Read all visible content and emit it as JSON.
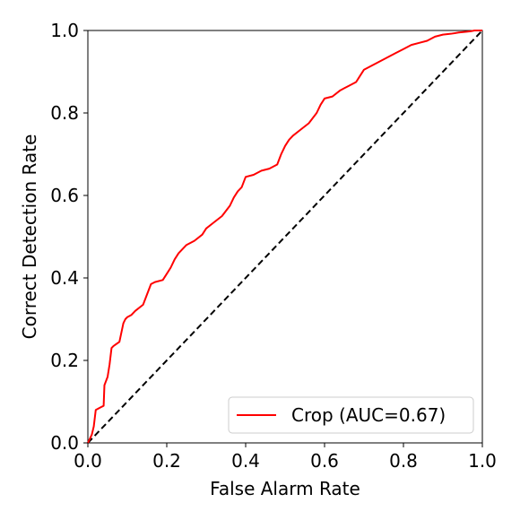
{
  "chart_data": {
    "type": "line",
    "title": "",
    "xlabel": "False Alarm Rate",
    "ylabel": "Correct Detection Rate",
    "xlim": [
      0.0,
      1.0
    ],
    "ylim": [
      0.0,
      1.0
    ],
    "xticks": [
      "0.0",
      "0.2",
      "0.4",
      "0.6",
      "0.8",
      "1.0"
    ],
    "yticks": [
      "0.0",
      "0.2",
      "0.4",
      "0.6",
      "0.8",
      "1.0"
    ],
    "grid": false,
    "legend_position": "lower-right",
    "series": [
      {
        "name": "Crop (AUC=0.67)",
        "color": "#ff0000",
        "style": "solid",
        "x": [
          0.0,
          0.01,
          0.015,
          0.02,
          0.03,
          0.04,
          0.042,
          0.05,
          0.055,
          0.06,
          0.065,
          0.08,
          0.09,
          0.095,
          0.1,
          0.11,
          0.12,
          0.14,
          0.15,
          0.16,
          0.17,
          0.19,
          0.2,
          0.21,
          0.22,
          0.23,
          0.25,
          0.27,
          0.29,
          0.3,
          0.32,
          0.34,
          0.36,
          0.37,
          0.38,
          0.39,
          0.4,
          0.42,
          0.44,
          0.46,
          0.48,
          0.49,
          0.5,
          0.51,
          0.52,
          0.54,
          0.56,
          0.58,
          0.59,
          0.6,
          0.62,
          0.64,
          0.65,
          0.66,
          0.68,
          0.69,
          0.7,
          0.72,
          0.74,
          0.76,
          0.78,
          0.8,
          0.82,
          0.84,
          0.86,
          0.88,
          0.9,
          0.92,
          0.94,
          0.96,
          0.97,
          0.98,
          1.0
        ],
        "y": [
          0.0,
          0.02,
          0.04,
          0.08,
          0.085,
          0.09,
          0.14,
          0.16,
          0.19,
          0.23,
          0.235,
          0.245,
          0.29,
          0.3,
          0.305,
          0.31,
          0.32,
          0.335,
          0.36,
          0.385,
          0.39,
          0.395,
          0.41,
          0.425,
          0.445,
          0.46,
          0.48,
          0.49,
          0.505,
          0.52,
          0.535,
          0.55,
          0.575,
          0.595,
          0.61,
          0.62,
          0.645,
          0.65,
          0.66,
          0.665,
          0.675,
          0.7,
          0.72,
          0.735,
          0.745,
          0.76,
          0.775,
          0.8,
          0.82,
          0.835,
          0.84,
          0.855,
          0.86,
          0.865,
          0.875,
          0.89,
          0.905,
          0.915,
          0.925,
          0.935,
          0.945,
          0.955,
          0.965,
          0.97,
          0.975,
          0.985,
          0.99,
          0.992,
          0.995,
          0.997,
          0.998,
          1.0,
          1.0
        ]
      },
      {
        "name": "",
        "color": "#000000",
        "style": "dashed",
        "x": [
          0.0,
          1.0
        ],
        "y": [
          0.0,
          1.0
        ]
      }
    ]
  }
}
